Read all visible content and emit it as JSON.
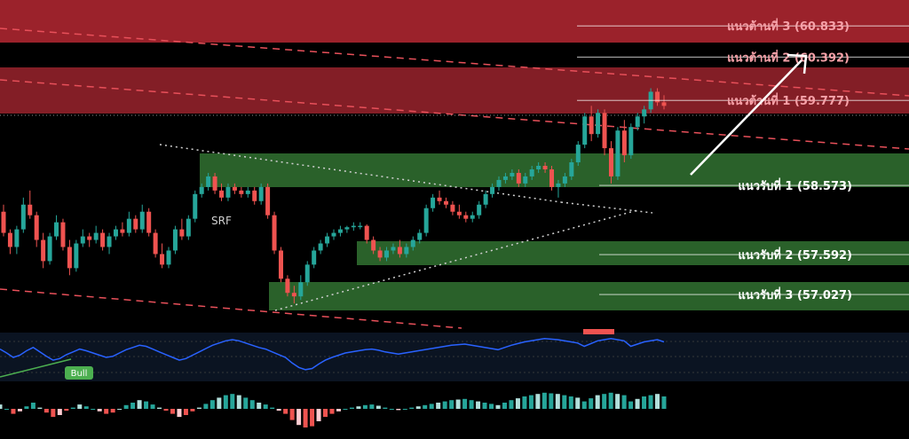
{
  "chart_data": {
    "type": "candlestick",
    "price_range": [
      56.55,
      61.2
    ],
    "annotations": {
      "pattern_label": "SRF",
      "bull_label": "Bull"
    },
    "resistance_levels": [
      {
        "name": "แนวต้านที่ 3",
        "value": 60.833,
        "label": "แนวต้านที่ 3 (60.833)"
      },
      {
        "name": "แนวต้านที่ 2",
        "value": 60.392,
        "label": "แนวต้านที่ 2 (60.392)"
      },
      {
        "name": "แนวต้านที่ 1",
        "value": 59.777,
        "label": "แนวต้านที่ 1 (59.777)"
      }
    ],
    "support_levels": [
      {
        "name": "แนวรับที่ 1",
        "value": 58.573,
        "label": "แนวรับที่ 1 (58.573)"
      },
      {
        "name": "แนวรับที่ 2",
        "value": 57.592,
        "label": "แนวรับที่ 2 (57.592)"
      },
      {
        "name": "แนวรับที่ 3",
        "value": 57.027,
        "label": "แนวรับที่ 3 (57.027)"
      }
    ],
    "candles_ohlc": [
      [
        58.2,
        58.3,
        57.85,
        57.9
      ],
      [
        57.9,
        57.95,
        57.6,
        57.7
      ],
      [
        57.7,
        58.0,
        57.6,
        57.95
      ],
      [
        57.95,
        58.4,
        57.9,
        58.3
      ],
      [
        58.3,
        58.5,
        58.1,
        58.15
      ],
      [
        58.15,
        58.2,
        57.7,
        57.8
      ],
      [
        57.8,
        57.9,
        57.4,
        57.5
      ],
      [
        57.5,
        57.9,
        57.45,
        57.85
      ],
      [
        57.85,
        58.15,
        57.8,
        58.05
      ],
      [
        58.05,
        58.1,
        57.65,
        57.7
      ],
      [
        57.7,
        57.8,
        57.3,
        57.4
      ],
      [
        57.4,
        57.8,
        57.35,
        57.75
      ],
      [
        57.75,
        57.95,
        57.7,
        57.85
      ],
      [
        57.85,
        57.9,
        57.7,
        57.8
      ],
      [
        57.8,
        58.0,
        57.75,
        57.9
      ],
      [
        57.9,
        57.95,
        57.65,
        57.7
      ],
      [
        57.7,
        57.9,
        57.6,
        57.85
      ],
      [
        57.85,
        58.0,
        57.8,
        57.95
      ],
      [
        57.95,
        58.05,
        57.85,
        57.9
      ],
      [
        57.9,
        58.2,
        57.85,
        58.1
      ],
      [
        58.1,
        58.15,
        57.9,
        57.95
      ],
      [
        57.95,
        58.3,
        57.9,
        58.2
      ],
      [
        58.2,
        58.25,
        57.85,
        57.9
      ],
      [
        57.9,
        57.95,
        57.55,
        57.6
      ],
      [
        57.6,
        57.75,
        57.4,
        57.45
      ],
      [
        57.45,
        57.7,
        57.4,
        57.65
      ],
      [
        57.65,
        58.0,
        57.6,
        57.95
      ],
      [
        57.95,
        58.1,
        57.8,
        57.85
      ],
      [
        57.85,
        58.15,
        57.8,
        58.1
      ],
      [
        58.1,
        58.5,
        58.05,
        58.45
      ],
      [
        58.45,
        58.6,
        58.4,
        58.55
      ],
      [
        58.55,
        58.75,
        58.5,
        58.7
      ],
      [
        58.7,
        58.75,
        58.45,
        58.5
      ],
      [
        58.5,
        58.6,
        58.35,
        58.4
      ],
      [
        58.4,
        58.6,
        58.35,
        58.55
      ],
      [
        58.55,
        58.6,
        58.45,
        58.5
      ],
      [
        58.5,
        58.55,
        58.4,
        58.45
      ],
      [
        58.45,
        58.55,
        58.4,
        58.5
      ],
      [
        58.5,
        58.55,
        58.3,
        58.35
      ],
      [
        58.35,
        58.6,
        58.3,
        58.55
      ],
      [
        58.55,
        58.6,
        58.1,
        58.15
      ],
      [
        58.15,
        58.2,
        57.6,
        57.65
      ],
      [
        57.65,
        57.7,
        57.2,
        57.25
      ],
      [
        57.25,
        57.3,
        57.0,
        57.05
      ],
      [
        57.05,
        57.15,
        56.9,
        57.0
      ],
      [
        57.0,
        57.3,
        56.95,
        57.2
      ],
      [
        57.2,
        57.5,
        57.15,
        57.45
      ],
      [
        57.45,
        57.7,
        57.4,
        57.65
      ],
      [
        57.65,
        57.8,
        57.6,
        57.75
      ],
      [
        57.75,
        57.9,
        57.7,
        57.85
      ],
      [
        57.85,
        57.95,
        57.8,
        57.9
      ],
      [
        57.9,
        58.0,
        57.85,
        57.95
      ],
      [
        57.95,
        58.0,
        57.9,
        57.98
      ],
      [
        57.98,
        58.05,
        57.93,
        58.0
      ],
      [
        58.0,
        58.05,
        57.95,
        58.0
      ],
      [
        58.0,
        58.02,
        57.75,
        57.8
      ],
      [
        57.8,
        57.85,
        57.6,
        57.65
      ],
      [
        57.65,
        57.7,
        57.5,
        57.55
      ],
      [
        57.55,
        57.7,
        57.5,
        57.65
      ],
      [
        57.65,
        57.75,
        57.6,
        57.7
      ],
      [
        57.7,
        57.8,
        57.55,
        57.6
      ],
      [
        57.6,
        57.75,
        57.55,
        57.7
      ],
      [
        57.7,
        57.85,
        57.65,
        57.8
      ],
      [
        57.8,
        57.95,
        57.75,
        57.9
      ],
      [
        57.9,
        58.3,
        57.85,
        58.25
      ],
      [
        58.25,
        58.45,
        58.2,
        58.4
      ],
      [
        58.4,
        58.5,
        58.3,
        58.35
      ],
      [
        58.35,
        58.4,
        58.25,
        58.3
      ],
      [
        58.3,
        58.35,
        58.15,
        58.2
      ],
      [
        58.2,
        58.3,
        58.1,
        58.15
      ],
      [
        58.15,
        58.2,
        58.05,
        58.1
      ],
      [
        58.1,
        58.2,
        58.05,
        58.15
      ],
      [
        58.15,
        58.35,
        58.1,
        58.3
      ],
      [
        58.3,
        58.5,
        58.25,
        58.45
      ],
      [
        58.45,
        58.6,
        58.4,
        58.55
      ],
      [
        58.55,
        58.7,
        58.5,
        58.65
      ],
      [
        58.65,
        58.75,
        58.6,
        58.7
      ],
      [
        58.7,
        58.8,
        58.65,
        58.75
      ],
      [
        58.75,
        58.8,
        58.55,
        58.6
      ],
      [
        58.6,
        58.75,
        58.55,
        58.7
      ],
      [
        58.7,
        58.85,
        58.65,
        58.8
      ],
      [
        58.8,
        58.9,
        58.75,
        58.85
      ],
      [
        58.85,
        58.9,
        58.75,
        58.8
      ],
      [
        58.8,
        58.85,
        58.5,
        58.55
      ],
      [
        58.55,
        58.65,
        58.4,
        58.6
      ],
      [
        58.6,
        58.75,
        58.55,
        58.7
      ],
      [
        58.7,
        58.95,
        58.65,
        58.9
      ],
      [
        58.9,
        59.2,
        58.85,
        59.15
      ],
      [
        59.15,
        59.6,
        59.1,
        59.55
      ],
      [
        59.55,
        59.7,
        59.2,
        59.3
      ],
      [
        59.3,
        59.65,
        59.25,
        59.6
      ],
      [
        59.6,
        59.65,
        59.0,
        59.1
      ],
      [
        59.1,
        59.2,
        58.6,
        58.7
      ],
      [
        58.7,
        59.4,
        58.65,
        59.35
      ],
      [
        59.35,
        59.5,
        58.9,
        59.0
      ],
      [
        59.0,
        59.45,
        58.95,
        59.4
      ],
      [
        59.4,
        59.6,
        59.35,
        59.55
      ],
      [
        59.55,
        59.7,
        59.45,
        59.65
      ],
      [
        59.65,
        59.95,
        59.6,
        59.9
      ],
      [
        59.9,
        59.95,
        59.7,
        59.75
      ],
      [
        59.75,
        59.85,
        59.65,
        59.7
      ]
    ],
    "oscillator_line": [
      55,
      48,
      40,
      44,
      52,
      58,
      50,
      42,
      35,
      38,
      45,
      50,
      55,
      52,
      48,
      44,
      40,
      42,
      48,
      54,
      58,
      62,
      60,
      55,
      50,
      45,
      40,
      35,
      38,
      44,
      50,
      56,
      62,
      66,
      70,
      72,
      70,
      66,
      62,
      58,
      55,
      50,
      45,
      40,
      30,
      22,
      18,
      20,
      28,
      35,
      40,
      44,
      48,
      50,
      52,
      54,
      55,
      53,
      50,
      48,
      46,
      48,
      50,
      52,
      54,
      56,
      58,
      60,
      62,
      63,
      64,
      62,
      60,
      58,
      56,
      54,
      58,
      62,
      65,
      68,
      70,
      72,
      74,
      73,
      72,
      70,
      68,
      66,
      60,
      65,
      70,
      72,
      74,
      72,
      70,
      60,
      64,
      68,
      70,
      72,
      68
    ]
  }
}
